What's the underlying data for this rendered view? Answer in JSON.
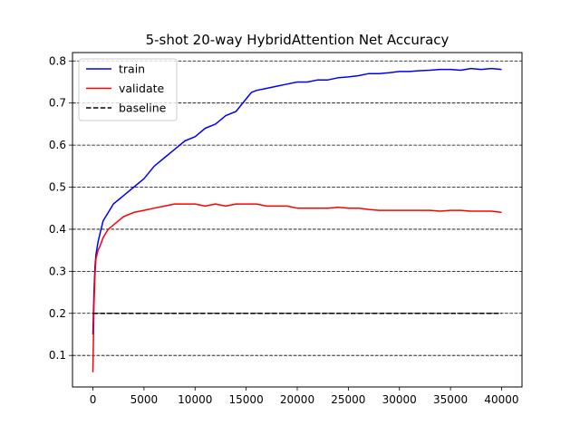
{
  "chart_data": {
    "type": "line",
    "title": "5-shot 20-way HybridAttention Net Accuracy",
    "xlabel": "",
    "ylabel": "",
    "xlim": [
      -2000,
      42000
    ],
    "ylim": [
      0.025,
      0.82
    ],
    "x_ticks": [
      0,
      5000,
      10000,
      15000,
      20000,
      25000,
      30000,
      35000,
      40000
    ],
    "x_tick_labels": [
      "0",
      "5000",
      "10000",
      "15000",
      "20000",
      "25000",
      "30000",
      "35000",
      "40000"
    ],
    "y_ticks": [
      0.1,
      0.2,
      0.3,
      0.4,
      0.5,
      0.6,
      0.7,
      0.8
    ],
    "y_tick_labels": [
      "0.1",
      "0.2",
      "0.3",
      "0.4",
      "0.5",
      "0.6",
      "0.7",
      "0.8"
    ],
    "grid": "horizontal dashed",
    "legend_position": "upper-left",
    "series": [
      {
        "name": "train",
        "color": "#0000ff",
        "style": "solid",
        "x": [
          0,
          100,
          200,
          300,
          500,
          700,
          1000,
          1500,
          2000,
          2500,
          3000,
          4000,
          5000,
          6000,
          7000,
          8000,
          9000,
          10000,
          11000,
          12000,
          13000,
          14000,
          15000,
          15500,
          16000,
          17000,
          18000,
          19000,
          20000,
          21000,
          22000,
          23000,
          24000,
          25000,
          26000,
          27000,
          28000,
          29000,
          30000,
          31000,
          32000,
          33000,
          34000,
          35000,
          36000,
          37000,
          38000,
          39000,
          40000
        ],
        "y": [
          0.15,
          0.25,
          0.31,
          0.34,
          0.37,
          0.39,
          0.42,
          0.44,
          0.46,
          0.47,
          0.48,
          0.5,
          0.52,
          0.55,
          0.57,
          0.59,
          0.61,
          0.62,
          0.64,
          0.65,
          0.67,
          0.68,
          0.71,
          0.725,
          0.73,
          0.735,
          0.74,
          0.745,
          0.75,
          0.75,
          0.755,
          0.755,
          0.76,
          0.762,
          0.765,
          0.77,
          0.77,
          0.772,
          0.775,
          0.775,
          0.777,
          0.778,
          0.78,
          0.78,
          0.778,
          0.782,
          0.78,
          0.782,
          0.78
        ]
      },
      {
        "name": "validate",
        "color": "#ff0000",
        "style": "solid",
        "x": [
          0,
          100,
          200,
          300,
          500,
          700,
          1000,
          1500,
          2000,
          2500,
          3000,
          4000,
          5000,
          6000,
          7000,
          8000,
          9000,
          10000,
          11000,
          12000,
          13000,
          14000,
          15000,
          16000,
          17000,
          18000,
          19000,
          20000,
          21000,
          22000,
          23000,
          24000,
          25000,
          26000,
          27000,
          28000,
          29000,
          30000,
          31000,
          32000,
          33000,
          34000,
          35000,
          36000,
          37000,
          38000,
          39000,
          40000
        ],
        "y": [
          0.06,
          0.22,
          0.29,
          0.33,
          0.35,
          0.36,
          0.38,
          0.4,
          0.41,
          0.42,
          0.43,
          0.44,
          0.445,
          0.45,
          0.455,
          0.46,
          0.46,
          0.46,
          0.455,
          0.46,
          0.455,
          0.46,
          0.46,
          0.46,
          0.455,
          0.455,
          0.455,
          0.45,
          0.45,
          0.45,
          0.45,
          0.452,
          0.45,
          0.45,
          0.447,
          0.445,
          0.445,
          0.445,
          0.445,
          0.445,
          0.445,
          0.443,
          0.445,
          0.445,
          0.443,
          0.443,
          0.443,
          0.44
        ]
      },
      {
        "name": "baseline",
        "color": "#000000",
        "style": "dashed",
        "x": [
          0,
          40000
        ],
        "y": [
          0.2,
          0.2
        ]
      }
    ]
  }
}
